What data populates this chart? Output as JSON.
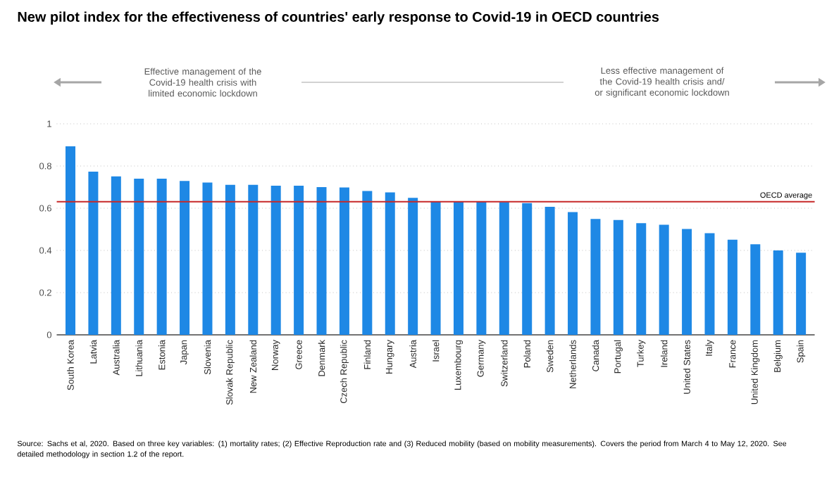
{
  "chart_data": {
    "type": "bar",
    "title": "New pilot index for the effectiveness of countries' early response to Covid-19 in OECD countries",
    "categories": [
      "South Korea",
      "Latvia",
      "Australia",
      "Lithuania",
      "Estonia",
      "Japan",
      "Slovenia",
      "Slovak Republic",
      "New Zealand",
      "Norway",
      "Greece",
      "Denmark",
      "Czech Republic",
      "Finland",
      "Hungary",
      "Austria",
      "Israel",
      "Luxembourg",
      "Germany",
      "Switzerland",
      "Poland",
      "Sweden",
      "Netherlands",
      "Canada",
      "Portugal",
      "Turkey",
      "Ireland",
      "United States",
      "Italy",
      "France",
      "United Kingdom",
      "Belgium",
      "Spain"
    ],
    "values": [
      0.893,
      0.773,
      0.751,
      0.74,
      0.74,
      0.729,
      0.722,
      0.711,
      0.711,
      0.707,
      0.707,
      0.7,
      0.698,
      0.682,
      0.675,
      0.649,
      0.633,
      0.631,
      0.631,
      0.629,
      0.624,
      0.607,
      0.582,
      0.549,
      0.544,
      0.529,
      0.522,
      0.502,
      0.482,
      0.451,
      0.429,
      0.4,
      0.389
    ],
    "color": "#1e88e5",
    "ylim": [
      0,
      1
    ],
    "yticks": [
      0,
      0.2,
      0.4,
      0.6,
      0.8,
      1
    ],
    "grid": "y",
    "ref_lines": [
      {
        "axis": "y",
        "value": 0.631,
        "label": "OECD average",
        "color": "#c62828"
      }
    ],
    "annotations": [
      "Effective management of the Covid-19 health crisis with limited economic lockdown",
      "Less effective management of the Covid-19 health crisis and/ or significant economic lockdown",
      "Source: Sachs et al, 2020. Based on three key variables: (1) mortality rates; (2) Effective Reproduction rate and (3) Reduced mobility (based on mobility measurements). Covers the period from March 4 to May 12, 2020. See detailed methodology in section 1.2 of the report."
    ]
  }
}
